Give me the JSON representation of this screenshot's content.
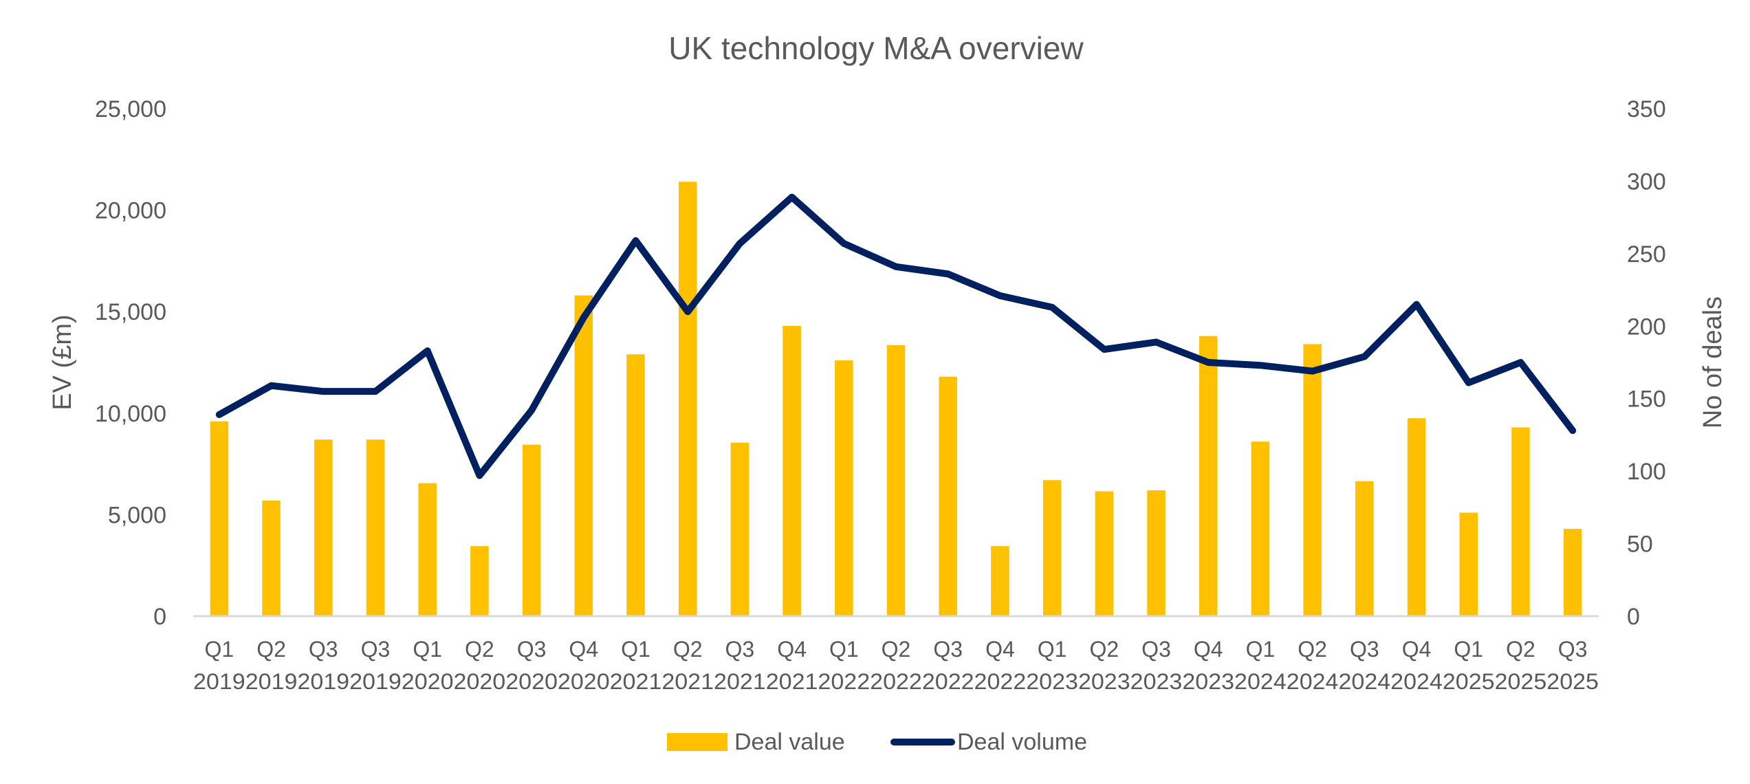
{
  "chart_data": {
    "type": "bar+line",
    "title": "UK technology M&A overview",
    "categories": [
      {
        "quarter": "Q1",
        "year": "2019"
      },
      {
        "quarter": "Q2",
        "year": "2019"
      },
      {
        "quarter": "Q3",
        "year": "2019"
      },
      {
        "quarter": "Q3",
        "year": "2019"
      },
      {
        "quarter": "Q1",
        "year": "2020"
      },
      {
        "quarter": "Q2",
        "year": "2020"
      },
      {
        "quarter": "Q3",
        "year": "2020"
      },
      {
        "quarter": "Q4",
        "year": "2020"
      },
      {
        "quarter": "Q1",
        "year": "2021"
      },
      {
        "quarter": "Q2",
        "year": "2021"
      },
      {
        "quarter": "Q3",
        "year": "2021"
      },
      {
        "quarter": "Q4",
        "year": "2021"
      },
      {
        "quarter": "Q1",
        "year": "2022"
      },
      {
        "quarter": "Q2",
        "year": "2022"
      },
      {
        "quarter": "Q3",
        "year": "2022"
      },
      {
        "quarter": "Q4",
        "year": "2022"
      },
      {
        "quarter": "Q1",
        "year": "2023"
      },
      {
        "quarter": "Q2",
        "year": "2023"
      },
      {
        "quarter": "Q3",
        "year": "2023"
      },
      {
        "quarter": "Q4",
        "year": "2023"
      },
      {
        "quarter": "Q1",
        "year": "2024"
      },
      {
        "quarter": "Q2",
        "year": "2024"
      },
      {
        "quarter": "Q3",
        "year": "2024"
      },
      {
        "quarter": "Q4",
        "year": "2024"
      },
      {
        "quarter": "Q1",
        "year": "2025"
      },
      {
        "quarter": "Q2",
        "year": "2025"
      },
      {
        "quarter": "Q3",
        "year": "2025"
      }
    ],
    "series": [
      {
        "name": "Deal value",
        "type": "bar",
        "axis": "left",
        "color": "#FFC000",
        "values": [
          9600,
          5700,
          8700,
          8700,
          6550,
          3450,
          8450,
          15800,
          12900,
          21400,
          8550,
          14300,
          12600,
          13350,
          11800,
          3450,
          6700,
          6150,
          6200,
          13800,
          8600,
          13400,
          6650,
          9750,
          5100,
          9300,
          4300
        ]
      },
      {
        "name": "Deal volume",
        "type": "line",
        "axis": "right",
        "color": "#002060",
        "values": [
          139,
          159,
          155,
          155,
          183,
          97,
          142,
          206,
          259,
          210,
          257,
          289,
          257,
          241,
          236,
          221,
          213,
          184,
          189,
          175,
          173,
          169,
          179,
          215,
          161,
          175,
          128
        ]
      }
    ],
    "y_left": {
      "label": "EV (£m)",
      "range": [
        0,
        25000
      ],
      "ticks": [
        "0",
        "5,000",
        "10,000",
        "15,000",
        "20,000",
        "25,000"
      ],
      "tick_values": [
        0,
        5000,
        10000,
        15000,
        20000,
        25000
      ]
    },
    "y_right": {
      "label": "No of deals",
      "range": [
        0,
        350
      ],
      "ticks": [
        "0",
        "50",
        "100",
        "150",
        "200",
        "250",
        "300",
        "350"
      ],
      "tick_values": [
        0,
        50,
        100,
        150,
        200,
        250,
        300,
        350
      ]
    },
    "grid": false,
    "legend": {
      "position": "bottom",
      "entries": [
        "Deal value",
        "Deal volume"
      ]
    }
  },
  "colors": {
    "bar": "#FFC000",
    "line": "#002060",
    "text": "#595959",
    "axis": "#D9D9D9"
  }
}
